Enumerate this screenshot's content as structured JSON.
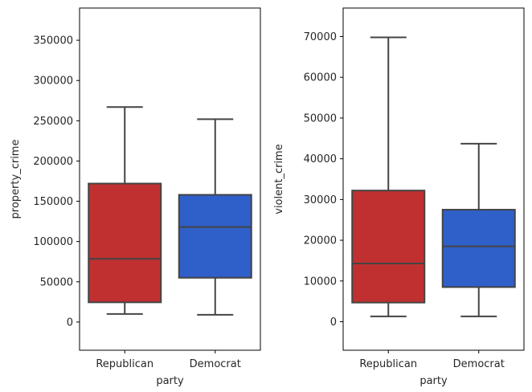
{
  "chart_data": [
    {
      "type": "box",
      "xlabel": "party",
      "ylabel": "property_crime",
      "categories": [
        "Republican",
        "Democrat"
      ],
      "ylim": [
        -35000,
        390000
      ],
      "yticks": [
        0,
        50000,
        100000,
        150000,
        200000,
        250000,
        300000,
        350000
      ],
      "ytick_labels": [
        "0",
        "50000",
        "100000",
        "150000",
        "200000",
        "250000",
        "300000",
        "350000"
      ],
      "boxes": [
        {
          "category": "Republican",
          "color": "#c03030",
          "whisker_low": 10000,
          "q1": 24500,
          "median": 78500,
          "q3": 172000,
          "whisker_high": 267000
        },
        {
          "category": "Democrat",
          "color": "#2f5fc8",
          "whisker_low": 9000,
          "q1": 55000,
          "median": 118000,
          "q3": 158000,
          "whisker_high": 252000
        }
      ]
    },
    {
      "type": "box",
      "xlabel": "party",
      "ylabel": "violent_crime",
      "categories": [
        "Republican",
        "Democrat"
      ],
      "ylim": [
        -7000,
        77000
      ],
      "yticks": [
        0,
        10000,
        20000,
        30000,
        40000,
        50000,
        60000,
        70000
      ],
      "ytick_labels": [
        "0",
        "10000",
        "20000",
        "30000",
        "40000",
        "50000",
        "60000",
        "70000"
      ],
      "boxes": [
        {
          "category": "Republican",
          "color": "#c03030",
          "whisker_low": 1300,
          "q1": 4700,
          "median": 14300,
          "q3": 32200,
          "whisker_high": 69800
        },
        {
          "category": "Democrat",
          "color": "#2f5fc8",
          "whisker_low": 1300,
          "q1": 8500,
          "median": 18500,
          "q3": 27500,
          "whisker_high": 43700
        }
      ]
    }
  ]
}
